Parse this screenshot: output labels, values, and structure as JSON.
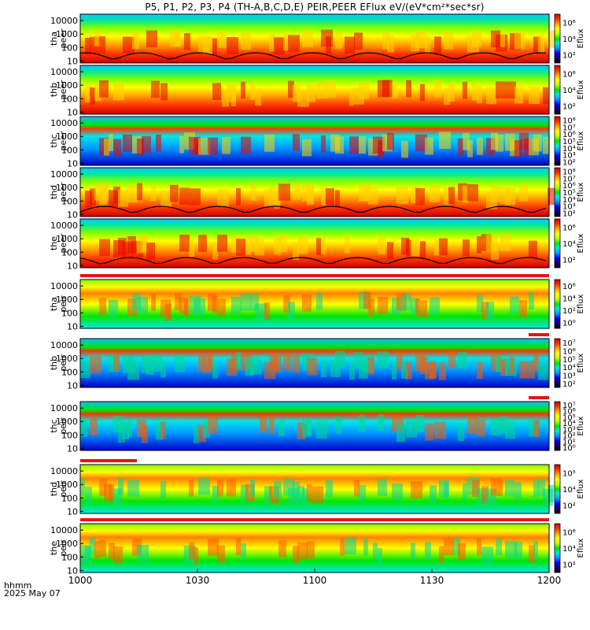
{
  "chart_data": {
    "type": "heatmap",
    "title": "P5, P1, P2, P3, P4 (TH-A,B,C,D,E) PEIR,PEER EFlux eV/(eV*cm²*sec*sr)",
    "x_axis": {
      "label_line1": "hhmm",
      "label_line2": "2025 May 07",
      "range": [
        "1000",
        "1200"
      ],
      "ticks": [
        "1000",
        "1030",
        "1100",
        "1130",
        "1200"
      ]
    },
    "y_axis_ticks": [
      "10",
      "100",
      "1000",
      "10000"
    ],
    "y_scale": "log",
    "colorbar_label": "Eflux",
    "panels": [
      {
        "probe": "tha",
        "species": "peer",
        "cbar_ticks": [
          "10²",
          "10⁴",
          "10⁶"
        ],
        "status_bar": "none",
        "scpot_curve": true
      },
      {
        "probe": "thb",
        "species": "peer",
        "cbar_ticks": [
          "10²",
          "10⁴",
          "10⁶"
        ],
        "status_bar": "none",
        "scpot_curve": false
      },
      {
        "probe": "thc",
        "species": "peer",
        "cbar_ticks": [
          "10²",
          "10³",
          "10⁴",
          "10⁵",
          "10⁶",
          "10⁷",
          "10⁸"
        ],
        "status_bar": "none",
        "scpot_curve": false
      },
      {
        "probe": "thd",
        "species": "peer",
        "cbar_ticks": [
          "10²",
          "10³",
          "10⁴",
          "10⁵",
          "10⁶",
          "10⁷",
          "10⁸"
        ],
        "status_bar": "none",
        "scpot_curve": true
      },
      {
        "probe": "the",
        "species": "peer",
        "cbar_ticks": [
          "10²",
          "10⁴",
          "10⁶"
        ],
        "status_bar": "none",
        "scpot_curve": true
      },
      {
        "probe": "tha",
        "species": "peir",
        "cbar_ticks": [
          "10⁰",
          "10²",
          "10⁴",
          "10⁶"
        ],
        "status_bar": "red-full",
        "scpot_curve": false
      },
      {
        "probe": "thb",
        "species": "peir",
        "cbar_ticks": [
          "10²",
          "10³",
          "10⁴",
          "10⁵",
          "10⁶",
          "10⁷"
        ],
        "status_bar": "red-end",
        "scpot_curve": false
      },
      {
        "probe": "thc",
        "species": "peir",
        "cbar_ticks": [
          "10⁰",
          "10¹",
          "10²",
          "10³",
          "10⁴",
          "10⁵",
          "10⁶",
          "10⁷"
        ],
        "status_bar": "red-end",
        "scpot_curve": false
      },
      {
        "probe": "thd",
        "species": "peir",
        "cbar_ticks": [
          "10²",
          "10⁴",
          "10⁵"
        ],
        "status_bar": "red-start",
        "scpot_curve": false
      },
      {
        "probe": "the",
        "species": "peir",
        "cbar_ticks": [
          "10²",
          "10⁴",
          "10⁶"
        ],
        "status_bar": "red-full",
        "scpot_curve": false
      }
    ],
    "colorscale": [
      "#000000",
      "#1a0066",
      "#0000ff",
      "#0096ff",
      "#00e6e6",
      "#00e600",
      "#bfff00",
      "#ffff00",
      "#ffa500",
      "#ff3300",
      "#cc0000"
    ],
    "grid": false
  }
}
